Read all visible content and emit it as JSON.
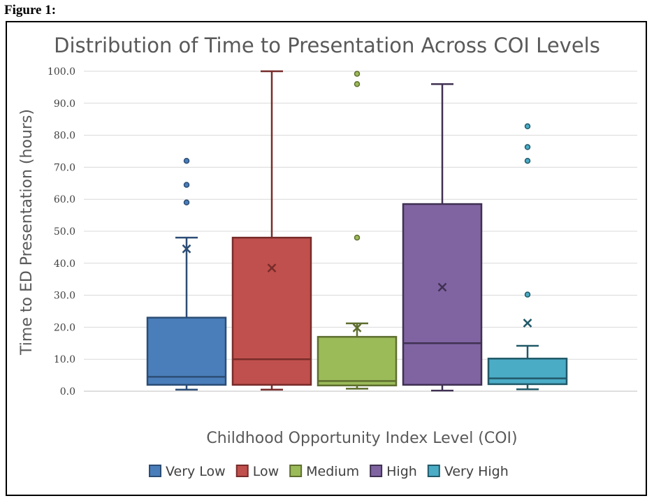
{
  "figure_label": "Figure 1:",
  "chart_data": {
    "type": "box",
    "title": "Distribution of Time to Presentation Across COI Levels",
    "xlabel": "Childhood Opportunity Index Level (COI)",
    "ylabel": "Time to ED Presentation (hours)",
    "ylim": [
      0,
      100
    ],
    "yticks": [
      "0.0",
      "10.0",
      "20.0",
      "30.0",
      "40.0",
      "50.0",
      "60.0",
      "70.0",
      "80.0",
      "90.0",
      "100.0"
    ],
    "grid": true,
    "legend_position": "bottom",
    "series": [
      {
        "name": "Very Low",
        "color": "#4a7ebb",
        "edge": "#2c4d75",
        "min": 0.5,
        "q1": 2.0,
        "median": 4.5,
        "q3": 23.0,
        "max": 48.0,
        "mean": 44.5,
        "outliers": [
          59.0,
          64.5,
          72.0
        ]
      },
      {
        "name": "Low",
        "color": "#c0504d",
        "edge": "#772c2a",
        "min": 0.5,
        "q1": 2.0,
        "median": 10.0,
        "q3": 48.0,
        "max": 100.0,
        "mean": 38.5,
        "outliers": []
      },
      {
        "name": "Medium",
        "color": "#9bbb59",
        "edge": "#5e6e2f",
        "min": 0.8,
        "q1": 1.8,
        "median": 3.2,
        "q3": 17.0,
        "max": 21.2,
        "mean": 19.8,
        "outliers": [
          48.0,
          96.0,
          99.2
        ]
      },
      {
        "name": "High",
        "color": "#8064a2",
        "edge": "#403152",
        "min": 0.2,
        "q1": 2.0,
        "median": 15.0,
        "q3": 58.5,
        "max": 96.0,
        "mean": 32.5,
        "outliers": []
      },
      {
        "name": "Very High",
        "color": "#4bacc6",
        "edge": "#215968",
        "min": 0.6,
        "q1": 2.2,
        "median": 4.0,
        "q3": 10.2,
        "max": 14.2,
        "mean": 21.3,
        "outliers": [
          30.2,
          72.0,
          76.3,
          82.8
        ]
      }
    ]
  }
}
